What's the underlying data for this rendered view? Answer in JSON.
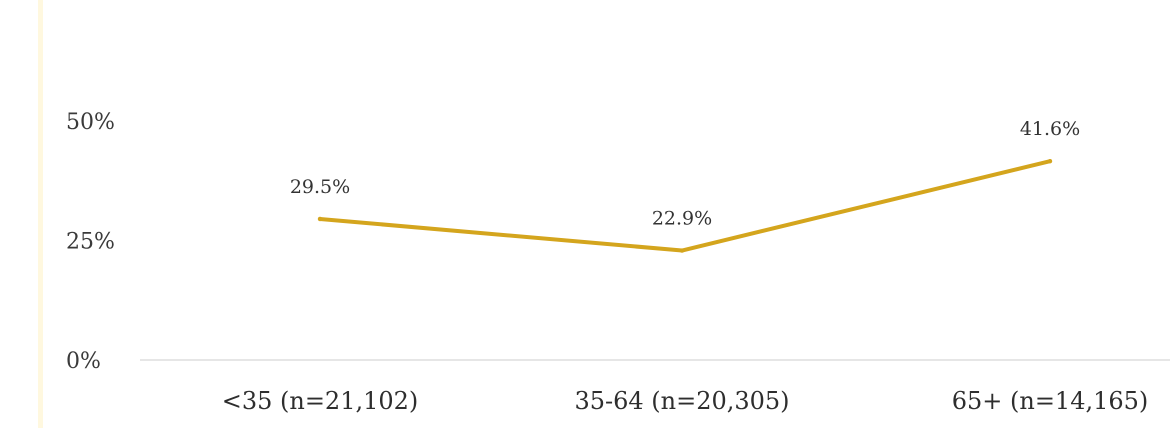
{
  "chart_data": {
    "type": "line",
    "categories": [
      "<35 (n=21,102)",
      "35-64 (n=20,305)",
      "65+ (n=14,165)"
    ],
    "series": [
      {
        "values": [
          29.5,
          22.9,
          41.6
        ],
        "labels": [
          "29.5%",
          "22.9%",
          "41.6%"
        ],
        "color": "#d4a51d"
      }
    ],
    "ylim": [
      0,
      50
    ],
    "yticks": [
      {
        "value": 0,
        "label": "0%"
      },
      {
        "value": 25,
        "label": "25%"
      },
      {
        "value": 50,
        "label": "50%"
      }
    ],
    "grid": false,
    "axis_color": "#d6d6d6"
  }
}
